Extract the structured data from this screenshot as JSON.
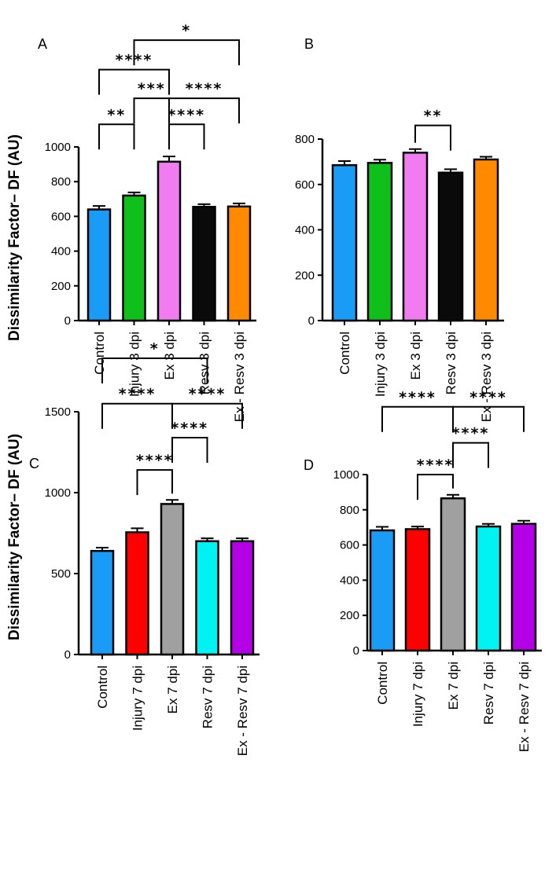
{
  "y_axis_label": "Dissimilarity Factor– DF (AU)",
  "chart_data": [
    {
      "panel": "A",
      "type": "bar",
      "categories": [
        "Control",
        "Injury 3 dpi",
        "Ex 3 dpi",
        "Resv 3 dpi",
        "Ex - Resv 3 dpi"
      ],
      "values": [
        640,
        720,
        915,
        655,
        657
      ],
      "errors": [
        20,
        18,
        30,
        15,
        18
      ],
      "colors": [
        "#1a9bf5",
        "#0fbf1a",
        "#f07cf0",
        "#0a0a0a",
        "#ff8a00"
      ],
      "ylim": [
        0,
        1000
      ],
      "yticks": [
        0,
        200,
        400,
        600,
        800,
        1000
      ],
      "ylabel": "Dissimilarity Factor– DF (AU)",
      "significance": [
        {
          "from": 0,
          "to": 1,
          "label": "**",
          "level": 1130
        },
        {
          "from": 2,
          "to": 3,
          "label": "****",
          "level": 1130
        },
        {
          "from": 1,
          "to": 2,
          "label": "***",
          "level": 1280
        },
        {
          "from": 2,
          "to": 4,
          "label": "****",
          "level": 1280
        },
        {
          "from": 0,
          "to": 2,
          "label": "****",
          "level": 1445
        },
        {
          "from": 1,
          "to": 4,
          "label": "*",
          "level": 1615
        }
      ]
    },
    {
      "panel": "B",
      "type": "bar",
      "categories": [
        "Control",
        "Injury 3 dpi",
        "Ex 3 dpi",
        "Resv 3 dpi",
        "Ex - Resv 3 dpi"
      ],
      "values": [
        685,
        695,
        740,
        652,
        710
      ],
      "errors": [
        18,
        14,
        16,
        15,
        12
      ],
      "colors": [
        "#1a9bf5",
        "#0fbf1a",
        "#f07cf0",
        "#0a0a0a",
        "#ff8a00"
      ],
      "ylim": [
        0,
        800
      ],
      "yticks": [
        0,
        200,
        400,
        600,
        800
      ],
      "ylabel": "",
      "significance": [
        {
          "from": 2,
          "to": 3,
          "label": "**",
          "level": 860
        }
      ]
    },
    {
      "panel": "C",
      "type": "bar",
      "categories": [
        "Control",
        "Injury 7 dpi",
        "Ex 7 dpi",
        "Resv 7 dpi",
        "Ex - Resv 7 dpi"
      ],
      "values": [
        640,
        755,
        930,
        700,
        700
      ],
      "errors": [
        20,
        25,
        25,
        18,
        18
      ],
      "colors": [
        "#1a9bf5",
        "#ff0000",
        "#a0a0a0",
        "#00f2f2",
        "#b300e6"
      ],
      "ylim": [
        0,
        1500
      ],
      "yticks": [
        0,
        500,
        1000,
        1500
      ],
      "ylabel": "Dissimilarity Factor– DF (AU)",
      "significance": [
        {
          "from": 1,
          "to": 2,
          "label": "****",
          "level": 1140
        },
        {
          "from": 2,
          "to": 3,
          "label": "****",
          "level": 1340
        },
        {
          "from": 0,
          "to": 2,
          "label": "****",
          "level": 1550
        },
        {
          "from": 2,
          "to": 4,
          "label": "****",
          "level": 1550
        },
        {
          "from": 0,
          "to": 3,
          "label": "*",
          "level": 1830
        }
      ]
    },
    {
      "panel": "D",
      "type": "bar",
      "categories": [
        "Control",
        "Injury 7 dpi",
        "Ex 7 dpi",
        "Resv 7 dpi",
        "Ex - Resv 7 dpi"
      ],
      "values": [
        683,
        690,
        865,
        705,
        720
      ],
      "errors": [
        20,
        15,
        20,
        15,
        18
      ],
      "colors": [
        "#1a9bf5",
        "#ff0000",
        "#a0a0a0",
        "#00f2f2",
        "#b300e6"
      ],
      "ylim": [
        0,
        1000
      ],
      "yticks": [
        0,
        200,
        400,
        600,
        800,
        1000
      ],
      "ylabel": "",
      "significance": [
        {
          "from": 1,
          "to": 2,
          "label": "****",
          "level": 1000
        },
        {
          "from": 2,
          "to": 3,
          "label": "****",
          "level": 1180
        },
        {
          "from": 0,
          "to": 2,
          "label": "****",
          "level": 1385
        },
        {
          "from": 2,
          "to": 4,
          "label": "****",
          "level": 1385
        }
      ]
    }
  ]
}
